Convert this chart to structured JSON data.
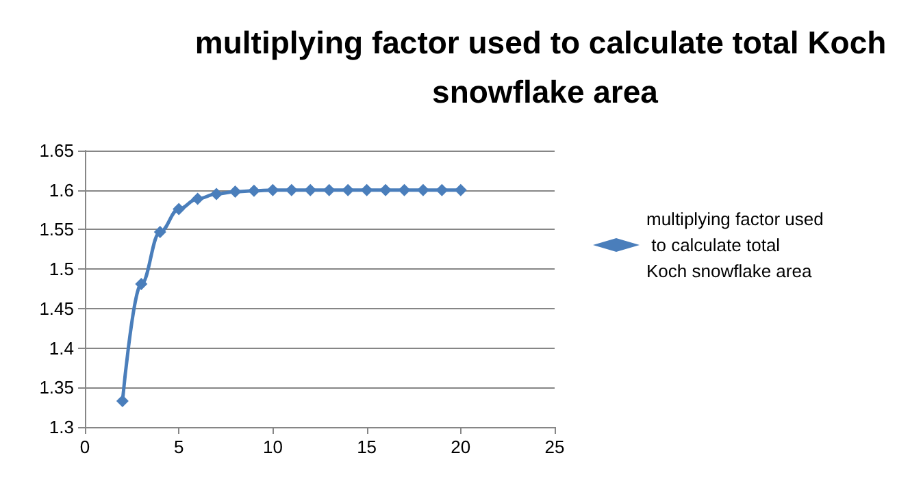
{
  "chart_data": {
    "type": "line",
    "title": "multiplying factor used to calculate total Koch snowflake area",
    "x": [
      2,
      3,
      4,
      5,
      6,
      7,
      8,
      9,
      10,
      11,
      12,
      13,
      14,
      15,
      16,
      17,
      18,
      19,
      20
    ],
    "series": [
      {
        "name": "multiplying factor used to calculate total Koch snowflake area",
        "color": "#4a7ebb",
        "values": [
          1.333,
          1.481,
          1.547,
          1.576,
          1.589,
          1.595,
          1.598,
          1.599,
          1.6,
          1.6,
          1.6,
          1.6,
          1.6,
          1.6,
          1.6,
          1.6,
          1.6,
          1.6,
          1.6
        ]
      }
    ],
    "xlim": [
      0,
      25
    ],
    "xticks": [
      0,
      5,
      10,
      15,
      20,
      25
    ],
    "ylim": [
      1.3,
      1.65
    ],
    "yticks": [
      1.3,
      1.35,
      1.4,
      1.45,
      1.5,
      1.55,
      1.6,
      1.65
    ],
    "grid": "y",
    "legend": "right",
    "marker": "diamond",
    "line_style": "solid"
  }
}
